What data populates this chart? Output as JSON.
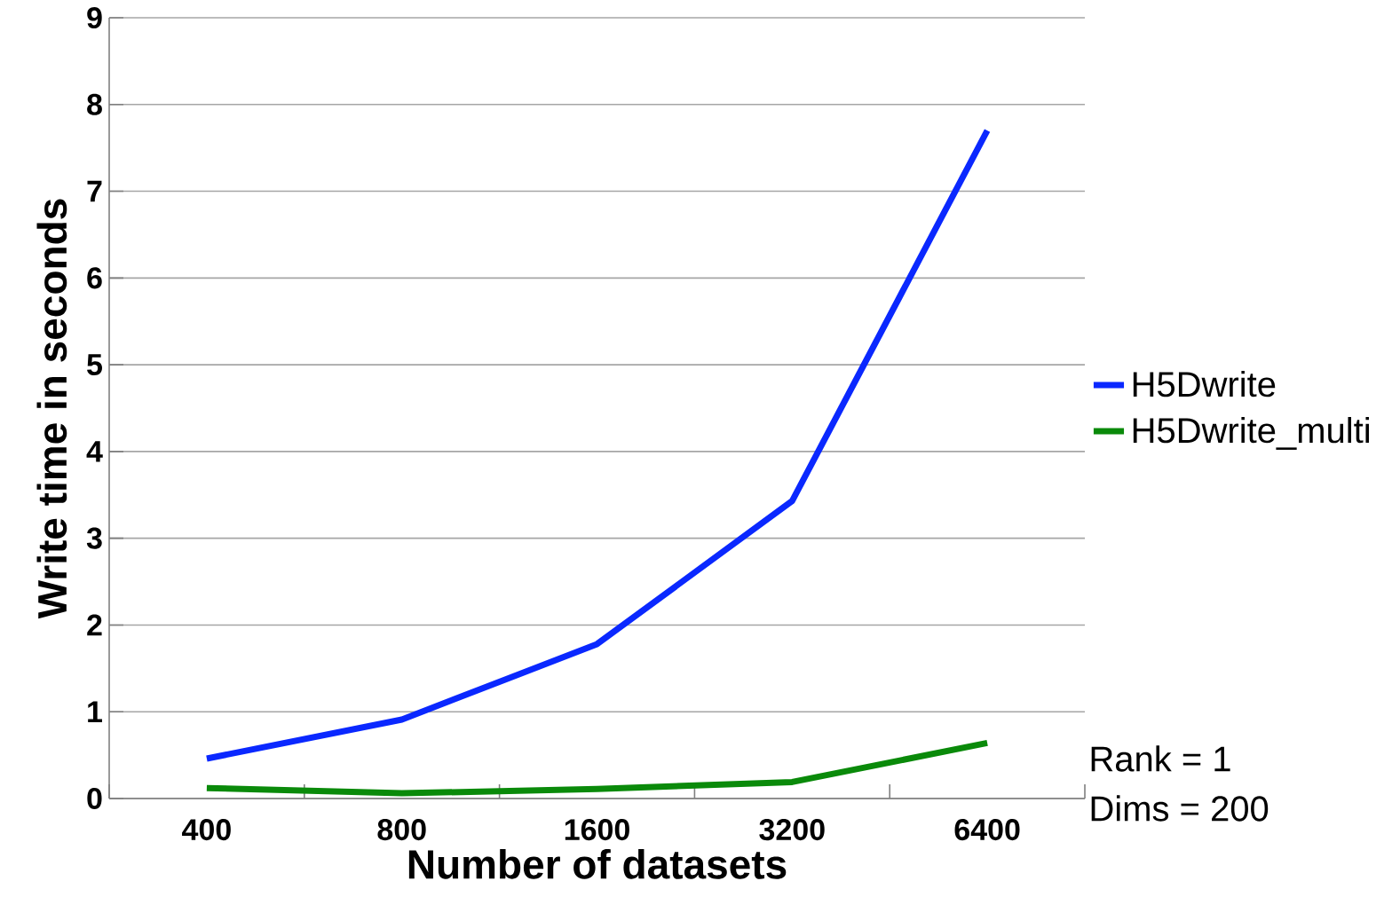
{
  "chart_data": {
    "type": "line",
    "xlabel": "Number of datasets",
    "ylabel": "Write time in seconds",
    "categories": [
      "400",
      "800",
      "1600",
      "3200",
      "6400"
    ],
    "series": [
      {
        "name": "H5Dwrite",
        "color": "#0a28ff",
        "values": [
          0.46,
          0.91,
          1.78,
          3.43,
          7.7
        ]
      },
      {
        "name": "H5Dwrite_multi",
        "color": "#0a8a0a",
        "values": [
          0.12,
          0.06,
          0.11,
          0.19,
          0.64
        ]
      }
    ],
    "ylim": [
      0,
      9
    ],
    "yticks": [
      0,
      1,
      2,
      3,
      4,
      5,
      6,
      7,
      8,
      9
    ],
    "grid": "y",
    "legend": "right",
    "marker": "none",
    "line_style": "solid",
    "annotations": [
      "Rank = 1",
      "Dims = 200"
    ]
  }
}
